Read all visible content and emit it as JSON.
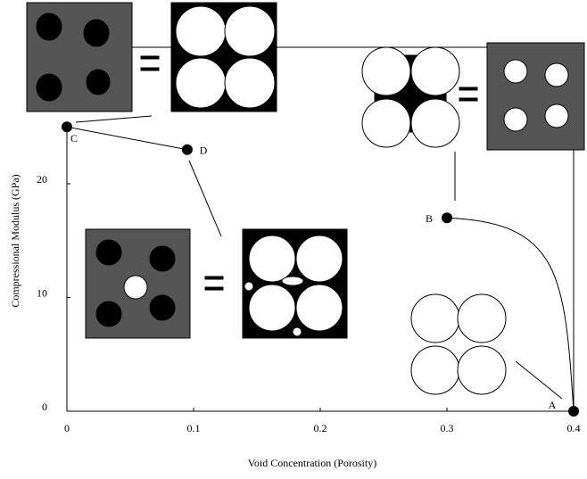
{
  "chart_data": {
    "type": "line",
    "x_label": "Void Concentration (Porosity)",
    "y_label": "Compressional Modulus (GPa)",
    "xlim": [
      0,
      0.4
    ],
    "ylim": [
      0,
      32
    ],
    "xticks": [
      0,
      0.1,
      0.2,
      0.3,
      0.4
    ],
    "yticks": [
      0,
      10,
      20
    ],
    "color": "#000000",
    "series": [
      {
        "point_labels": [
          "C",
          "D"
        ],
        "x": [
          0,
          0.095
        ],
        "values": [
          25,
          23
        ]
      },
      {
        "point_labels": [
          "B",
          "A"
        ],
        "x": [
          0.3,
          0.4
        ],
        "values": [
          17,
          0
        ]
      }
    ]
  }
}
